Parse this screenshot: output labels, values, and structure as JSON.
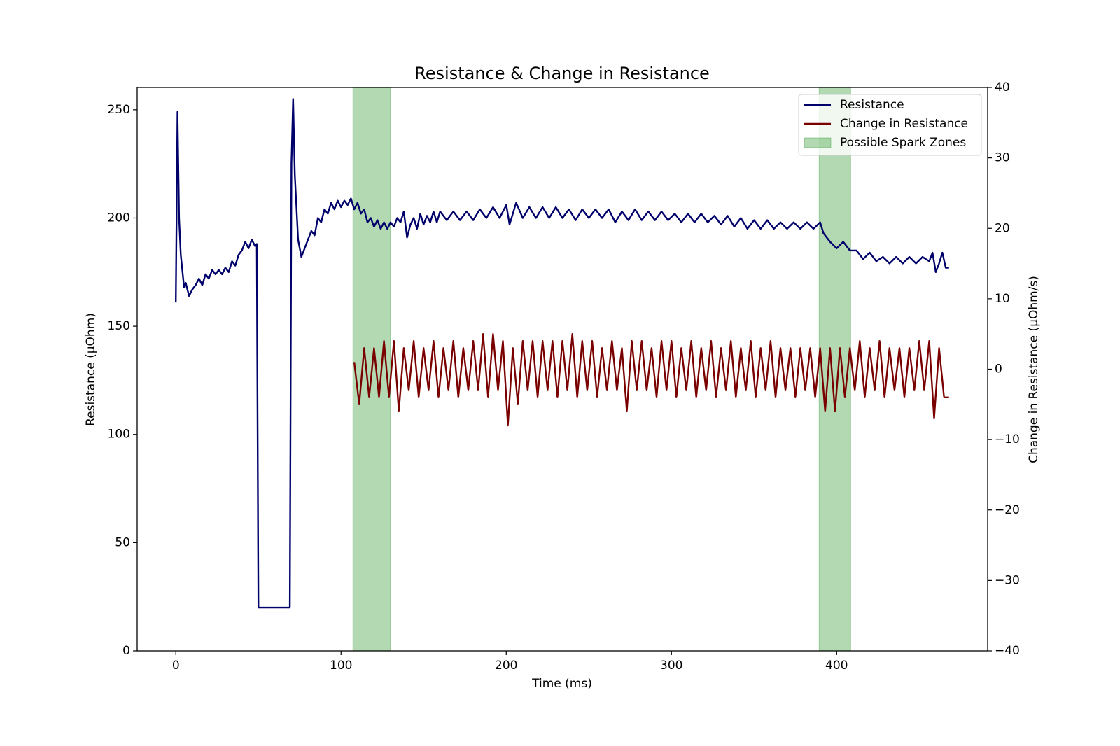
{
  "chart_data": {
    "type": "line",
    "title": "Resistance & Change in Resistance",
    "xlabel": "Time (ms)",
    "ylabel": "Resistance (µOhm)",
    "y2label": "Change in Resistance (µOhm/s)",
    "xlim": [
      -23.4,
      491.4
    ],
    "xticks": [
      0,
      100,
      200,
      300,
      400
    ],
    "ylim": [
      0,
      260.3
    ],
    "yticks": [
      0,
      50,
      100,
      150,
      200,
      250
    ],
    "y2lim": [
      -40,
      40
    ],
    "y2ticks": [
      {
        "value": -40,
        "label": "−40"
      },
      {
        "value": -30,
        "label": "−30"
      },
      {
        "value": -20,
        "label": "−20"
      },
      {
        "value": -10,
        "label": "−10"
      },
      0,
      10,
      20,
      30,
      40
    ],
    "legend": "upper right",
    "series": [
      {
        "name": "Resistance",
        "color": "#00006b",
        "axis": "y",
        "x": [
          0,
          1,
          2,
          3,
          5,
          6,
          7,
          8,
          10,
          12,
          14,
          16,
          18,
          20,
          22,
          24,
          26,
          28,
          30,
          32,
          34,
          36,
          38,
          40,
          42,
          44,
          46,
          48,
          49,
          50,
          69,
          70,
          71,
          72,
          74,
          76,
          78,
          80,
          82,
          84,
          86,
          88,
          90,
          92,
          94,
          96,
          98,
          100,
          102,
          104,
          106,
          108,
          110,
          112,
          114,
          116,
          118,
          120,
          122,
          124,
          126,
          128,
          130,
          132,
          134,
          136,
          138,
          140,
          142,
          144,
          146,
          148,
          150,
          152,
          154,
          156,
          158,
          160,
          164,
          168,
          172,
          176,
          180,
          184,
          188,
          192,
          196,
          200,
          202,
          206,
          210,
          214,
          218,
          222,
          226,
          230,
          234,
          238,
          242,
          246,
          250,
          254,
          258,
          262,
          266,
          270,
          274,
          278,
          282,
          286,
          290,
          294,
          298,
          302,
          306,
          310,
          314,
          318,
          322,
          326,
          330,
          334,
          338,
          342,
          346,
          350,
          354,
          358,
          362,
          366,
          370,
          374,
          378,
          382,
          386,
          390,
          392,
          396,
          400,
          404,
          408,
          412,
          416,
          420,
          424,
          428,
          432,
          436,
          440,
          444,
          448,
          452,
          456,
          458,
          460,
          462,
          464,
          466,
          468
        ],
        "values": [
          161,
          249,
          200,
          183,
          168,
          170,
          167,
          164,
          167,
          169,
          172,
          169,
          174,
          172,
          176,
          174,
          176,
          174,
          177,
          175,
          180,
          178,
          183,
          185,
          189,
          186,
          190,
          187,
          188,
          20,
          20,
          225,
          255,
          220,
          190,
          182,
          186,
          190,
          194,
          192,
          200,
          198,
          204,
          202,
          207,
          204,
          208,
          205,
          208,
          206,
          209,
          204,
          207,
          202,
          204,
          198,
          200,
          196,
          199,
          195,
          198,
          195,
          198,
          196,
          200,
          198,
          203,
          191,
          197,
          200,
          195,
          202,
          197,
          201,
          198,
          203,
          198,
          203,
          199,
          203,
          199,
          203,
          199,
          204,
          200,
          205,
          200,
          206,
          197,
          207,
          200,
          205,
          200,
          205,
          200,
          205,
          200,
          204,
          199,
          204,
          200,
          204,
          200,
          204,
          198,
          203,
          199,
          204,
          199,
          203,
          199,
          203,
          199,
          202,
          198,
          202,
          198,
          202,
          198,
          201,
          197,
          201,
          196,
          200,
          195,
          199,
          195,
          199,
          195,
          198,
          195,
          198,
          195,
          198,
          195,
          198,
          193,
          189,
          186,
          189,
          185,
          185,
          181,
          184,
          180,
          182,
          179,
          182,
          179,
          182,
          179,
          182,
          180,
          184,
          175,
          179,
          184,
          177,
          177
        ]
      },
      {
        "name": "Change in Resistance",
        "color": "#7a0000",
        "axis": "y2",
        "x": [
          108,
          111,
          114,
          117,
          120,
          123,
          126,
          129,
          132,
          135,
          138,
          141,
          144,
          147,
          150,
          153,
          156,
          159,
          162,
          165,
          168,
          171,
          174,
          177,
          180,
          183,
          186,
          189,
          192,
          195,
          198,
          201,
          204,
          207,
          210,
          213,
          216,
          219,
          222,
          225,
          228,
          231,
          234,
          237,
          240,
          243,
          246,
          249,
          252,
          255,
          258,
          261,
          264,
          267,
          270,
          273,
          276,
          279,
          282,
          285,
          288,
          291,
          294,
          297,
          300,
          303,
          306,
          309,
          312,
          315,
          318,
          321,
          324,
          327,
          330,
          333,
          336,
          339,
          342,
          345,
          348,
          351,
          354,
          357,
          360,
          363,
          366,
          369,
          372,
          375,
          378,
          381,
          384,
          387,
          390,
          393,
          396,
          399,
          402,
          405,
          408,
          411,
          414,
          417,
          420,
          423,
          426,
          429,
          432,
          435,
          438,
          441,
          444,
          447,
          450,
          453,
          456,
          459,
          462,
          465,
          468
        ],
        "values": [
          1,
          -5,
          3,
          -4,
          3,
          -4,
          4,
          -4,
          4,
          -6,
          3,
          -3,
          4,
          -4,
          3,
          -3,
          4,
          -4,
          3,
          -3,
          4,
          -4,
          3,
          -3,
          4,
          -3,
          5,
          -4,
          5,
          -3,
          4,
          -8,
          3,
          -5,
          4,
          -3,
          4,
          -4,
          4,
          -3,
          4,
          -4,
          4,
          -3,
          5,
          -4,
          4,
          -3,
          4,
          -4,
          3,
          -3,
          4,
          -3,
          3,
          -6,
          4,
          -3,
          4,
          -3,
          3,
          -4,
          4,
          -3,
          4,
          -4,
          3,
          -3,
          4,
          -4,
          3,
          -3,
          4,
          -4,
          3,
          -3,
          4,
          -4,
          3,
          -3,
          4,
          -4,
          3,
          -3,
          4,
          -4,
          3,
          -3,
          3,
          -4,
          3,
          -3,
          3,
          -4,
          3,
          -6,
          3,
          -6,
          3,
          -4,
          3,
          -3,
          4,
          -4,
          3,
          -3,
          4,
          -4,
          3,
          -3,
          3,
          -4,
          3,
          -3,
          4,
          -3,
          4,
          -7,
          3,
          -4,
          -4
        ]
      }
    ],
    "spans": {
      "name": "Possible Spark Zones",
      "color": "green",
      "ranges": [
        [
          107.2,
          130
        ],
        [
          389.4,
          408.5
        ]
      ]
    }
  }
}
